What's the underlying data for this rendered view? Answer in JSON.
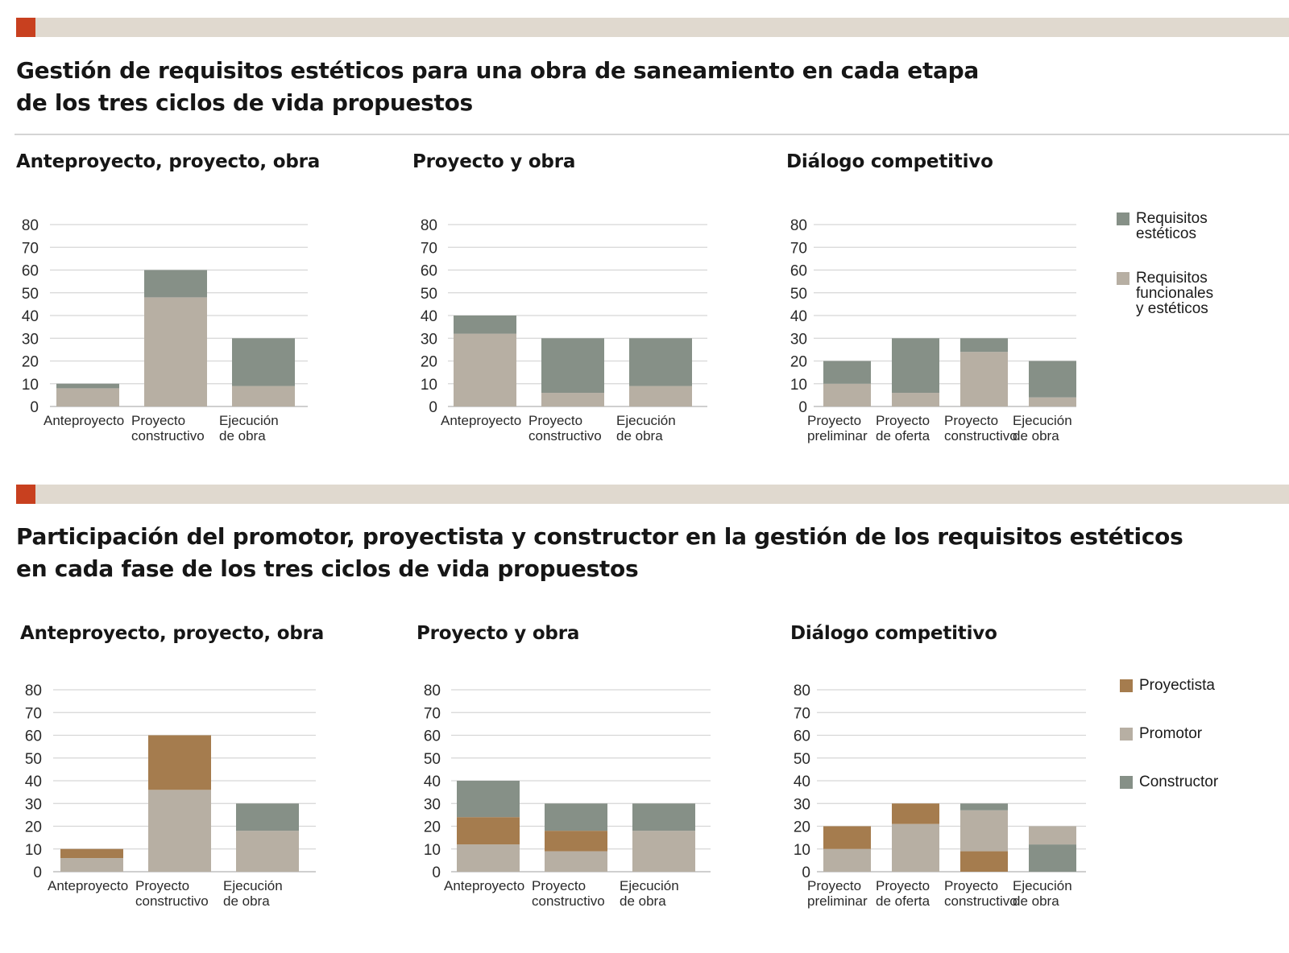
{
  "colors": {
    "accent": "#c8401f",
    "band": "#e0d9cf",
    "esteticos": "#869087",
    "funcionales": "#b7afa3",
    "proyectista": "#a57c4e",
    "promotor": "#b7afa3",
    "constructor": "#869087",
    "grid": "#d6d6d6"
  },
  "section1": {
    "title_line1": "Gestión de requisitos estéticos para una obra de saneamiento en cada etapa",
    "title_line2": "de los tres ciclos de vida propuestos",
    "legend": [
      {
        "key": "esteticos",
        "lines": [
          "Requisitos",
          "estéticos"
        ]
      },
      {
        "key": "funcionales",
        "lines": [
          "Requisitos",
          "funcionales",
          "y estéticos"
        ]
      }
    ]
  },
  "section2": {
    "title_line1": "Participación del promotor, proyectista y constructor en la gestión de los requisitos estéticos",
    "title_line2": "en cada fase de los tres ciclos de vida propuestos",
    "legend": [
      {
        "key": "proyectista",
        "lines": [
          "Proyectista"
        ]
      },
      {
        "key": "promotor",
        "lines": [
          "Promotor"
        ]
      },
      {
        "key": "constructor",
        "lines": [
          "Constructor"
        ]
      }
    ]
  },
  "chart_data": [
    {
      "id": "s1c1",
      "type": "bar",
      "stacked": true,
      "title": "Anteproyecto, proyecto, obra",
      "ylim": [
        0,
        80
      ],
      "yticks": [
        0,
        10,
        20,
        30,
        40,
        50,
        60,
        70,
        80
      ],
      "grid": true,
      "legend": "right",
      "categories": [
        [
          "Anteproyecto"
        ],
        [
          "Proyecto",
          "constructivo"
        ],
        [
          "Ejecución",
          "de obra"
        ]
      ],
      "stacks": [
        [
          {
            "series": "Requisitos funcionales y estéticos",
            "key": "funcionales",
            "value": 8
          },
          {
            "series": "Requisitos estéticos",
            "key": "esteticos",
            "value": 2
          }
        ],
        [
          {
            "series": "Requisitos funcionales y estéticos",
            "key": "funcionales",
            "value": 48
          },
          {
            "series": "Requisitos estéticos",
            "key": "esteticos",
            "value": 12
          }
        ],
        [
          {
            "series": "Requisitos funcionales y estéticos",
            "key": "funcionales",
            "value": 9
          },
          {
            "series": "Requisitos estéticos",
            "key": "esteticos",
            "value": 21
          }
        ]
      ]
    },
    {
      "id": "s1c2",
      "type": "bar",
      "stacked": true,
      "title": "Proyecto y obra",
      "ylim": [
        0,
        80
      ],
      "yticks": [
        0,
        10,
        20,
        30,
        40,
        50,
        60,
        70,
        80
      ],
      "grid": true,
      "legend": "right",
      "categories": [
        [
          "Anteproyecto"
        ],
        [
          "Proyecto",
          "constructivo"
        ],
        [
          "Ejecución",
          "de obra"
        ]
      ],
      "stacks": [
        [
          {
            "series": "Requisitos funcionales y estéticos",
            "key": "funcionales",
            "value": 32
          },
          {
            "series": "Requisitos estéticos",
            "key": "esteticos",
            "value": 8
          }
        ],
        [
          {
            "series": "Requisitos funcionales y estéticos",
            "key": "funcionales",
            "value": 6
          },
          {
            "series": "Requisitos estéticos",
            "key": "esteticos",
            "value": 24
          }
        ],
        [
          {
            "series": "Requisitos funcionales y estéticos",
            "key": "funcionales",
            "value": 9
          },
          {
            "series": "Requisitos estéticos",
            "key": "esteticos",
            "value": 21
          }
        ]
      ]
    },
    {
      "id": "s1c3",
      "type": "bar",
      "stacked": true,
      "title": "Diálogo competitivo",
      "ylim": [
        0,
        80
      ],
      "yticks": [
        0,
        10,
        20,
        30,
        40,
        50,
        60,
        70,
        80
      ],
      "grid": true,
      "legend": "right",
      "categories": [
        [
          "Proyecto",
          "preliminar"
        ],
        [
          "Proyecto",
          "de oferta"
        ],
        [
          "Proyecto",
          "constructivo"
        ],
        [
          "Ejecución",
          "de obra"
        ]
      ],
      "stacks": [
        [
          {
            "series": "Requisitos funcionales y estéticos",
            "key": "funcionales",
            "value": 10
          },
          {
            "series": "Requisitos estéticos",
            "key": "esteticos",
            "value": 10
          }
        ],
        [
          {
            "series": "Requisitos funcionales y estéticos",
            "key": "funcionales",
            "value": 6
          },
          {
            "series": "Requisitos estéticos",
            "key": "esteticos",
            "value": 24
          }
        ],
        [
          {
            "series": "Requisitos funcionales y estéticos",
            "key": "funcionales",
            "value": 24
          },
          {
            "series": "Requisitos estéticos",
            "key": "esteticos",
            "value": 6
          }
        ],
        [
          {
            "series": "Requisitos funcionales y estéticos",
            "key": "funcionales",
            "value": 4
          },
          {
            "series": "Requisitos estéticos",
            "key": "esteticos",
            "value": 16
          }
        ]
      ]
    },
    {
      "id": "s2c1",
      "type": "bar",
      "stacked": true,
      "title": "Anteproyecto, proyecto, obra",
      "ylim": [
        0,
        80
      ],
      "yticks": [
        0,
        10,
        20,
        30,
        40,
        50,
        60,
        70,
        80
      ],
      "grid": true,
      "legend": "right",
      "categories": [
        [
          "Anteproyecto"
        ],
        [
          "Proyecto",
          "constructivo"
        ],
        [
          "Ejecución",
          "de obra"
        ]
      ],
      "stacks": [
        [
          {
            "series": "Promotor",
            "key": "promotor",
            "value": 6
          },
          {
            "series": "Proyectista",
            "key": "proyectista",
            "value": 4
          }
        ],
        [
          {
            "series": "Promotor",
            "key": "promotor",
            "value": 36
          },
          {
            "series": "Proyectista",
            "key": "proyectista",
            "value": 24
          }
        ],
        [
          {
            "series": "Promotor",
            "key": "promotor",
            "value": 18
          },
          {
            "series": "Constructor",
            "key": "constructor",
            "value": 12
          }
        ]
      ]
    },
    {
      "id": "s2c2",
      "type": "bar",
      "stacked": true,
      "title": "Proyecto y obra",
      "ylim": [
        0,
        80
      ],
      "yticks": [
        0,
        10,
        20,
        30,
        40,
        50,
        60,
        70,
        80
      ],
      "grid": true,
      "legend": "right",
      "categories": [
        [
          "Anteproyecto"
        ],
        [
          "Proyecto",
          "constructivo"
        ],
        [
          "Ejecución",
          "de obra"
        ]
      ],
      "stacks": [
        [
          {
            "series": "Promotor",
            "key": "promotor",
            "value": 12
          },
          {
            "series": "Proyectista",
            "key": "proyectista",
            "value": 12
          },
          {
            "series": "Constructor",
            "key": "constructor",
            "value": 16
          }
        ],
        [
          {
            "series": "Promotor",
            "key": "promotor",
            "value": 9
          },
          {
            "series": "Proyectista",
            "key": "proyectista",
            "value": 9
          },
          {
            "series": "Constructor",
            "key": "constructor",
            "value": 12
          }
        ],
        [
          {
            "series": "Promotor",
            "key": "promotor",
            "value": 18
          },
          {
            "series": "Constructor",
            "key": "constructor",
            "value": 12
          }
        ]
      ]
    },
    {
      "id": "s2c3",
      "type": "bar",
      "stacked": true,
      "title": "Diálogo competitivo",
      "ylim": [
        0,
        80
      ],
      "yticks": [
        0,
        10,
        20,
        30,
        40,
        50,
        60,
        70,
        80
      ],
      "grid": true,
      "legend": "right",
      "categories": [
        [
          "Proyecto",
          "preliminar"
        ],
        [
          "Proyecto",
          "de oferta"
        ],
        [
          "Proyecto",
          "constructivo"
        ],
        [
          "Ejecución",
          "de obra"
        ]
      ],
      "stacks": [
        [
          {
            "series": "Promotor",
            "key": "promotor",
            "value": 10
          },
          {
            "series": "Proyectista",
            "key": "proyectista",
            "value": 10
          }
        ],
        [
          {
            "series": "Promotor",
            "key": "promotor",
            "value": 21
          },
          {
            "series": "Proyectista",
            "key": "proyectista",
            "value": 9
          }
        ],
        [
          {
            "series": "Proyectista",
            "key": "proyectista",
            "value": 9
          },
          {
            "series": "Promotor",
            "key": "promotor",
            "value": 18
          },
          {
            "series": "Constructor",
            "key": "constructor",
            "value": 3
          }
        ],
        [
          {
            "series": "Constructor",
            "key": "constructor",
            "value": 12
          },
          {
            "series": "Promotor",
            "key": "promotor",
            "value": 8
          }
        ]
      ]
    }
  ]
}
